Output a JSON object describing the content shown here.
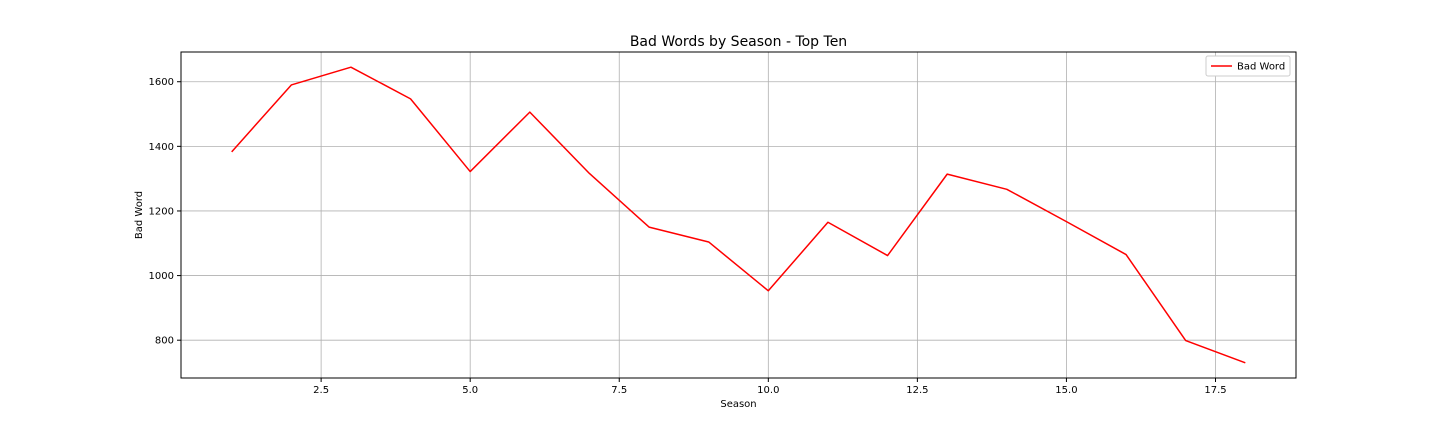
{
  "chart_data": {
    "type": "line",
    "title": "Bad Words by Season - Top Ten",
    "xlabel": "Season",
    "ylabel": "Bad Word",
    "xlim": [
      0.15,
      18.85
    ],
    "ylim": [
      683,
      1692
    ],
    "xticks": [
      2.5,
      5.0,
      7.5,
      10.0,
      12.5,
      15.0,
      17.5
    ],
    "xtick_labels": [
      "2.5",
      "5.0",
      "7.5",
      "10.0",
      "12.5",
      "15.0",
      "17.5"
    ],
    "yticks": [
      800,
      1000,
      1200,
      1400,
      1600
    ],
    "ytick_labels": [
      "800",
      "1000",
      "1200",
      "1400",
      "1600"
    ],
    "grid": true,
    "legend_position": "top-right",
    "series": [
      {
        "name": "Bad Word",
        "color": "#ff0000",
        "x": [
          1,
          2,
          3,
          4,
          5,
          6,
          7,
          8,
          9,
          10,
          11,
          12,
          13,
          14,
          15,
          16,
          17,
          18
        ],
        "y": [
          1383,
          1590,
          1645,
          1547,
          1322,
          1506,
          1316,
          1150,
          1104,
          953,
          1165,
          1062,
          1314,
          1267,
          1167,
          1065,
          799,
          730
        ]
      }
    ]
  }
}
